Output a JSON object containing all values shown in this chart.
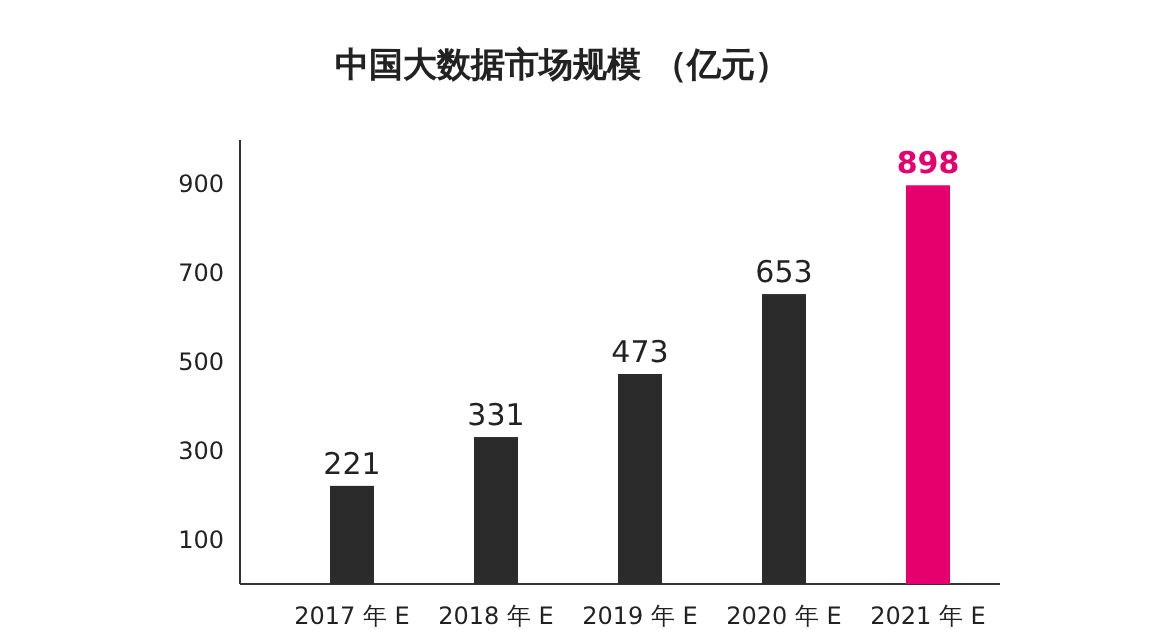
{
  "chart_data": {
    "type": "bar",
    "title": "中国大数据市场规模 （亿元）",
    "categories": [
      "2017 年 E",
      "2018 年 E",
      "2019 年 E",
      "2020 年 E",
      "2021 年 E"
    ],
    "values": [
      221,
      331,
      473,
      653,
      898
    ],
    "colors": [
      "#2b2b2b",
      "#2b2b2b",
      "#2b2b2b",
      "#2b2b2b",
      "#e5006e"
    ],
    "ylim": [
      0,
      1000
    ],
    "yticks": [
      100,
      300,
      500,
      700,
      900
    ],
    "data_labels": true
  }
}
